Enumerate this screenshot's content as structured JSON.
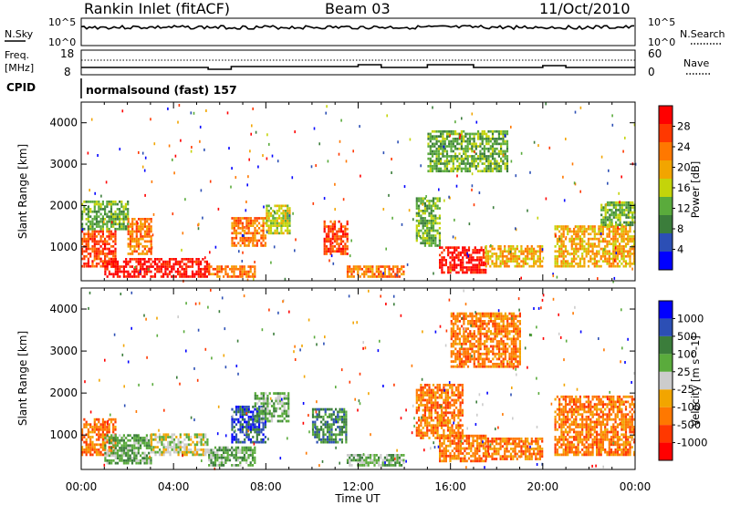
{
  "header": {
    "station": "Rankin Inlet (fitACF)",
    "beam": "Beam 03",
    "date": "11/Oct/2010"
  },
  "panels": {
    "nsky_label": "N.Sky",
    "nsky_ticks": [
      "10^5",
      "10^0"
    ],
    "nsearch_label": "N.Search",
    "freq_label": "Freq.",
    "freq_unit": "[MHz]",
    "freq_ticks": [
      "18",
      "8"
    ],
    "nave_ticks": [
      "60",
      "0"
    ],
    "nave_label": "Nave",
    "cpid_label": "CPID",
    "cpid_text": "normalsound (fast) 157"
  },
  "colors": {
    "power": [
      "#0000ff",
      "#2c4fb5",
      "#3b7d3b",
      "#5aab3c",
      "#c4d40a",
      "#f2a500",
      "#ff7800",
      "#ff3800",
      "#ff0000"
    ],
    "velocity": [
      "#0000ff",
      "#2c4fb5",
      "#3b7d3b",
      "#5aab3c",
      "#cccccc",
      "#f2a500",
      "#ff7800",
      "#ff3800",
      "#ff0000"
    ]
  },
  "chart_data": [
    {
      "type": "heatmap",
      "name": "power",
      "xlabel": "",
      "ylabel": "Slant Range [km]",
      "ylim": [
        180,
        4500
      ],
      "xlim": [
        "00:00",
        "24:00"
      ],
      "yticks": [
        "1000",
        "2000",
        "3000",
        "4000"
      ],
      "colorbar_label": "Power [dB]",
      "colorbar_ticks": [
        "4",
        "8",
        "12",
        "16",
        "20",
        "24",
        "28"
      ],
      "echo_regions": [
        {
          "t0": 0.0,
          "t1": 1.5,
          "r0": 500,
          "r1": 1400,
          "level": 7
        },
        {
          "t0": 1.0,
          "t1": 5.5,
          "r0": 250,
          "r1": 700,
          "level": 8
        },
        {
          "t0": 0.0,
          "t1": 2.0,
          "r0": 1400,
          "r1": 2100,
          "level": 3
        },
        {
          "t0": 2.0,
          "t1": 3.0,
          "r0": 800,
          "r1": 1700,
          "level": 6
        },
        {
          "t0": 5.5,
          "t1": 7.5,
          "r0": 250,
          "r1": 500,
          "level": 6
        },
        {
          "t0": 6.5,
          "t1": 8.0,
          "r0": 1000,
          "r1": 1700,
          "level": 6
        },
        {
          "t0": 8.0,
          "t1": 9.0,
          "r0": 1300,
          "r1": 2000,
          "level": 4
        },
        {
          "t0": 10.5,
          "t1": 11.5,
          "r0": 800,
          "r1": 1600,
          "level": 7
        },
        {
          "t0": 11.5,
          "t1": 14.0,
          "r0": 250,
          "r1": 500,
          "level": 6
        },
        {
          "t0": 14.5,
          "t1": 15.5,
          "r0": 1000,
          "r1": 2200,
          "level": 3
        },
        {
          "t0": 15.5,
          "t1": 17.5,
          "r0": 350,
          "r1": 1000,
          "level": 8
        },
        {
          "t0": 15.0,
          "t1": 18.5,
          "r0": 2800,
          "r1": 3800,
          "level": 3
        },
        {
          "t0": 17.5,
          "t1": 20.0,
          "r0": 500,
          "r1": 1000,
          "level": 5
        },
        {
          "t0": 20.5,
          "t1": 24.0,
          "r0": 500,
          "r1": 1500,
          "level": 5
        },
        {
          "t0": 22.5,
          "t1": 24.0,
          "r0": 1500,
          "r1": 2100,
          "level": 3
        }
      ]
    },
    {
      "type": "heatmap",
      "name": "velocity",
      "xlabel": "Time UT",
      "ylabel": "Slant Range [km]",
      "ylim": [
        180,
        4500
      ],
      "xlim": [
        "00:00",
        "24:00"
      ],
      "xticks": [
        "00:00",
        "04:00",
        "08:00",
        "12:00",
        "16:00",
        "20:00",
        "00:00"
      ],
      "yticks": [
        "1000",
        "2000",
        "3000",
        "4000"
      ],
      "colorbar_label": "Velocity [m s^-1]",
      "colorbar_ticks": [
        "1000",
        "500",
        "100",
        "25",
        "-25",
        "-100",
        "-500",
        "-1000"
      ],
      "echo_regions": [
        {
          "t0": 0.0,
          "t1": 1.5,
          "r0": 500,
          "r1": 1400,
          "level": 6
        },
        {
          "t0": 1.0,
          "t1": 3.0,
          "r0": 300,
          "r1": 1000,
          "level": 3
        },
        {
          "t0": 3.0,
          "t1": 5.5,
          "r0": 500,
          "r1": 1000,
          "level": 4
        },
        {
          "t0": 5.5,
          "t1": 7.5,
          "r0": 250,
          "r1": 700,
          "level": 3
        },
        {
          "t0": 6.5,
          "t1": 8.0,
          "r0": 800,
          "r1": 1700,
          "level": 1
        },
        {
          "t0": 7.5,
          "t1": 9.0,
          "r0": 1300,
          "r1": 2000,
          "level": 3
        },
        {
          "t0": 10.0,
          "t1": 11.5,
          "r0": 800,
          "r1": 1600,
          "level": 2
        },
        {
          "t0": 11.5,
          "t1": 14.0,
          "r0": 250,
          "r1": 500,
          "level": 3
        },
        {
          "t0": 14.5,
          "t1": 16.5,
          "r0": 900,
          "r1": 2200,
          "level": 6
        },
        {
          "t0": 15.5,
          "t1": 17.5,
          "r0": 350,
          "r1": 1000,
          "level": 6
        },
        {
          "t0": 16.0,
          "t1": 19.0,
          "r0": 2600,
          "r1": 3900,
          "level": 6
        },
        {
          "t0": 17.5,
          "t1": 20.0,
          "r0": 400,
          "r1": 900,
          "level": 6
        },
        {
          "t0": 20.5,
          "t1": 24.0,
          "r0": 500,
          "r1": 1900,
          "level": 6
        }
      ]
    }
  ]
}
